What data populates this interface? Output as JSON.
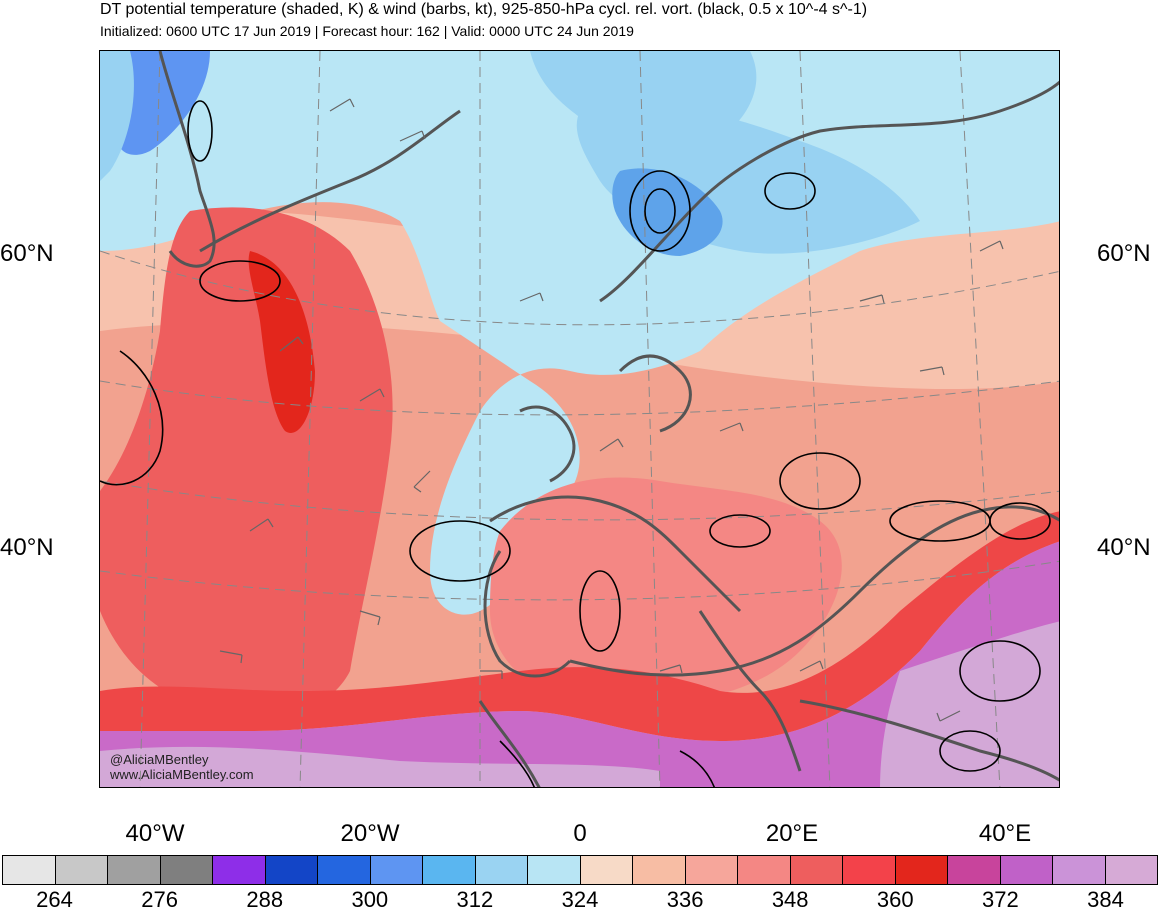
{
  "header": {
    "title": "DT potential temperature (shaded, K) & wind (barbs, kt), 925-850-hPa cycl. rel. vort. (black, 0.5 x 10^-4 s^-1)",
    "subtitle": "Initialized: 0600 UTC 17 Jun 2019 | Forecast hour: 162 | Valid: 0000 UTC 24 Jun 2019"
  },
  "map": {
    "lat_labels": {
      "lat60": "60°N",
      "lat40": "40°N"
    },
    "lon_labels": {
      "w40": "40°W",
      "w20": "20°W",
      "zero": "0",
      "e20": "20°E",
      "e40": "40°E"
    },
    "credit": {
      "handle": "@AliciaMBentley",
      "site": "www.AliciaMBentley.com"
    },
    "palette": {
      "warm_pink": "#f2a28f",
      "salmon": "#f7c2ad",
      "red": "#ee5e5e",
      "deep_red": "#e3261c",
      "light_blue": "#b9e6f5",
      "mid_blue": "#98d2f2",
      "blue": "#5ea3ea",
      "purple": "#c96ac8",
      "lavender": "#d3a8d7",
      "coast": "#555555"
    }
  },
  "colorbar": {
    "colors": [
      "#e6e6e6",
      "#c8c8c8",
      "#a0a0a0",
      "#7f7f7f",
      "#8e2ee8",
      "#1345c7",
      "#2466e0",
      "#5e95f2",
      "#5ab6f0",
      "#9ad3f2",
      "#b8e5f4",
      "#f7dac7",
      "#f7bda4",
      "#f6a69b",
      "#f48784",
      "#ee5e5e",
      "#f3424a",
      "#e3261c",
      "#c8449c",
      "#c061c8",
      "#cb93d8",
      "#d6aad6"
    ],
    "labels": [
      "264",
      "276",
      "288",
      "300",
      "312",
      "324",
      "336",
      "348",
      "360",
      "372",
      "384"
    ]
  }
}
